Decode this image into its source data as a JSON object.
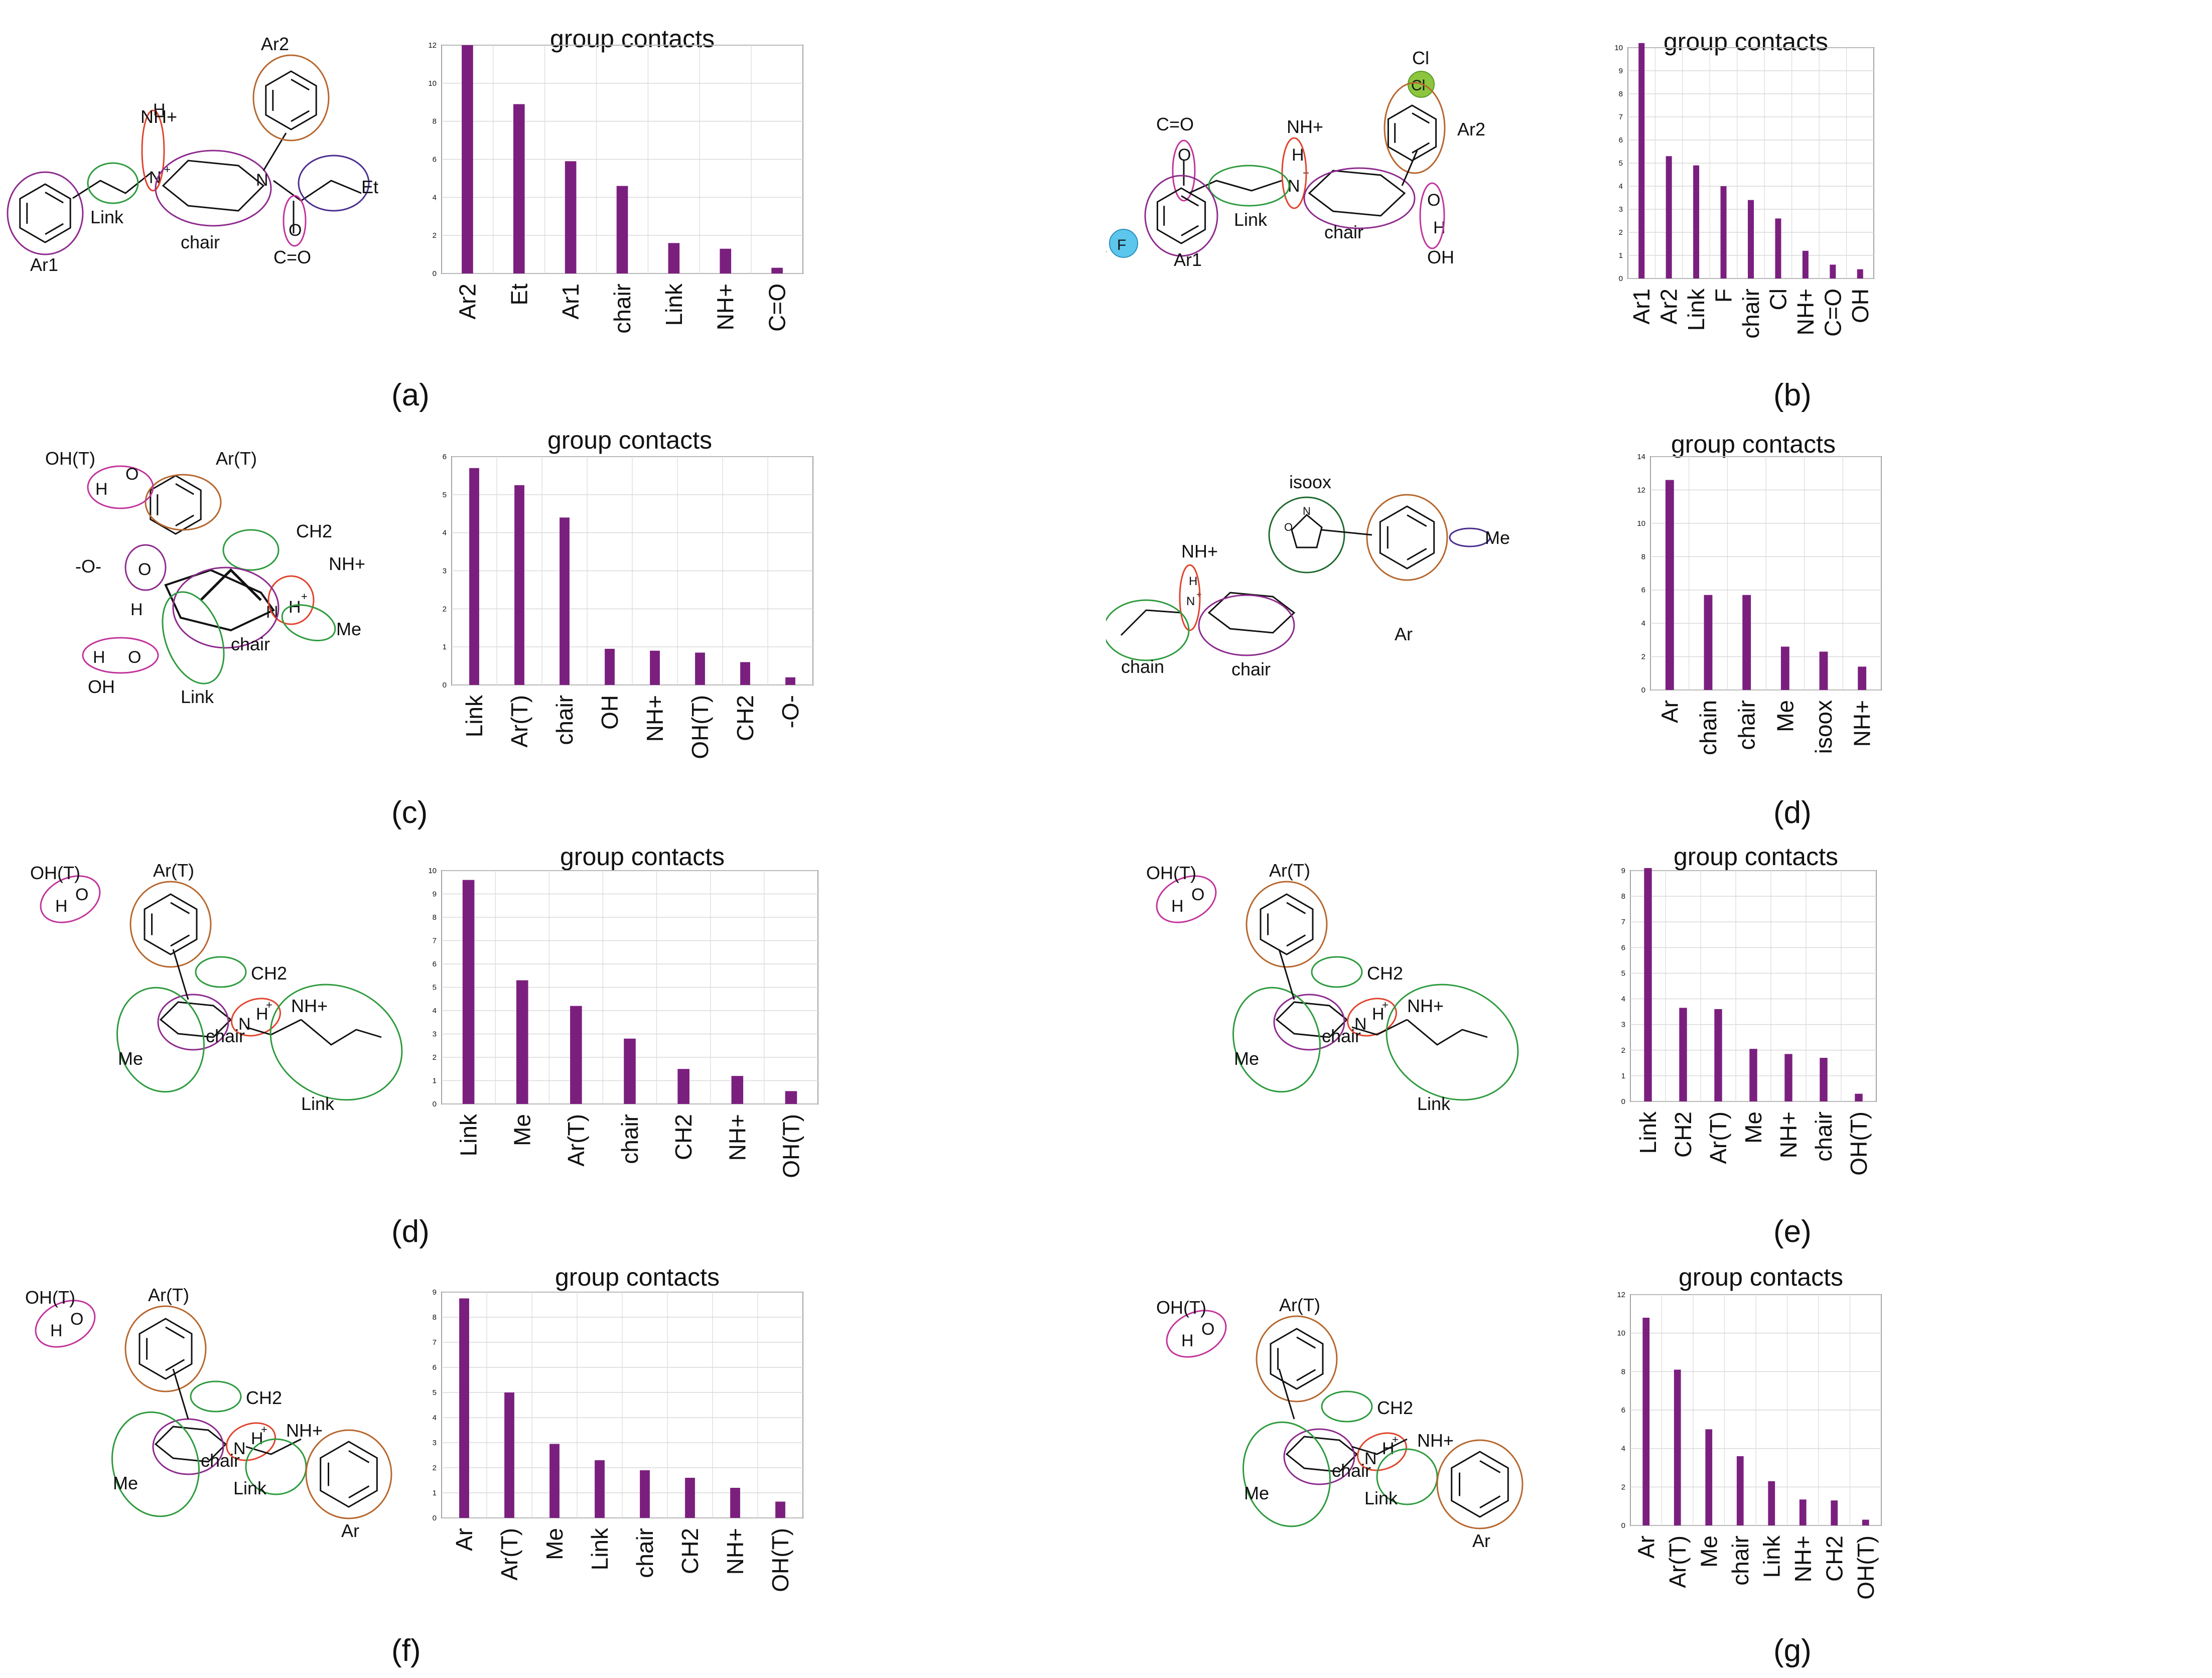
{
  "colors": {
    "bar": "#7B1F7F",
    "grid": "#d9d9d9",
    "axis": "#555555"
  },
  "chart_data": [
    {
      "id": "a",
      "panel_label": "(a)",
      "type": "bar",
      "title": "group contacts",
      "categories": [
        "Ar2",
        "Et",
        "Ar1",
        "chair",
        "Link",
        "NH+",
        "C=O"
      ],
      "values": [
        12.0,
        8.9,
        5.9,
        4.6,
        1.6,
        1.3,
        0.3
      ],
      "ylim": [
        0,
        12
      ],
      "yticks": [
        "0",
        "2",
        "4",
        "6",
        "8",
        "10",
        "12"
      ],
      "molecule": {
        "groups": [
          "Ar2",
          "NH+",
          "Link",
          "chair",
          "Et",
          "C=O",
          "Ar1"
        ],
        "atoms": [
          "H",
          "N",
          "+",
          "N",
          "O"
        ]
      }
    },
    {
      "id": "b",
      "panel_label": "(b)",
      "type": "bar",
      "title": "group contacts",
      "categories": [
        "Ar1",
        "Ar2",
        "Link",
        "F",
        "chair",
        "Cl",
        "NH+",
        "C=O",
        "OH"
      ],
      "values": [
        10.2,
        5.3,
        4.9,
        4.0,
        3.4,
        2.6,
        1.2,
        0.6,
        0.4
      ],
      "ylim": [
        0,
        10
      ],
      "yticks": [
        "0",
        "1",
        "2",
        "3",
        "4",
        "5",
        "6",
        "7",
        "8",
        "9",
        "10"
      ],
      "molecule": {
        "groups": [
          "Cl",
          "Ar2",
          "C=O",
          "NH+",
          "Link",
          "chair",
          "OH",
          "F",
          "Ar1"
        ],
        "atoms": [
          "Cl",
          "O",
          "H",
          "N",
          "+",
          "O",
          "H",
          "F"
        ]
      }
    },
    {
      "id": "c",
      "panel_label": "(c)",
      "type": "bar",
      "title": "group contacts",
      "categories": [
        "Link",
        "Ar(T)",
        "chair",
        "OH",
        "NH+",
        "OH(T)",
        "CH2",
        "-O-"
      ],
      "values": [
        5.7,
        5.25,
        4.4,
        0.95,
        0.9,
        0.85,
        0.6,
        0.2
      ],
      "ylim": [
        0,
        6
      ],
      "yticks": [
        "0",
        "1",
        "2",
        "3",
        "4",
        "5",
        "6"
      ],
      "molecule": {
        "groups": [
          "OH(T)",
          "Ar(T)",
          "CH2",
          "-O-",
          "NH+",
          "Me",
          "chair",
          "OH",
          "Link"
        ],
        "atoms": [
          "H",
          "O",
          "O",
          "H",
          "N",
          "H",
          "+",
          "H",
          "O"
        ]
      }
    },
    {
      "id": "d1",
      "panel_label": "(d)",
      "type": "bar",
      "title": "group contacts",
      "categories": [
        "Ar",
        "chain",
        "chair",
        "Me",
        "isoox",
        "NH+"
      ],
      "values": [
        12.6,
        5.7,
        5.7,
        2.6,
        2.3,
        1.4
      ],
      "ylim": [
        0,
        14
      ],
      "yticks": [
        "0",
        "2",
        "4",
        "6",
        "8",
        "10",
        "12",
        "14"
      ],
      "molecule": {
        "groups": [
          "isoox",
          "NH+",
          "Me",
          "chain",
          "chair",
          "Ar"
        ],
        "atoms": [
          "H",
          "N",
          "+",
          "O",
          "N"
        ]
      }
    },
    {
      "id": "d2",
      "panel_label": "(d)",
      "type": "bar",
      "title": "group contacts",
      "categories": [
        "Link",
        "Me",
        "Ar(T)",
        "chair",
        "CH2",
        "NH+",
        "OH(T)"
      ],
      "values": [
        9.6,
        5.3,
        4.2,
        2.8,
        1.5,
        1.2,
        0.55
      ],
      "ylim": [
        0,
        10
      ],
      "yticks": [
        "0",
        "1",
        "2",
        "3",
        "4",
        "5",
        "6",
        "7",
        "8",
        "9",
        "10"
      ],
      "molecule": {
        "groups": [
          "OH(T)",
          "Ar(T)",
          "CH2",
          "NH+",
          "Me",
          "chair",
          "Link"
        ],
        "atoms": [
          "H",
          "O",
          "N",
          "H",
          "+"
        ]
      }
    },
    {
      "id": "e",
      "panel_label": "(e)",
      "type": "bar",
      "title": "group contacts",
      "categories": [
        "Link",
        "CH2",
        "Ar(T)",
        "Me",
        "NH+",
        "chair",
        "OH(T)"
      ],
      "values": [
        9.1,
        3.65,
        3.6,
        2.05,
        1.85,
        1.7,
        0.3
      ],
      "ylim": [
        0,
        9
      ],
      "yticks": [
        "0",
        "1",
        "2",
        "3",
        "4",
        "5",
        "6",
        "7",
        "8",
        "9"
      ],
      "molecule": {
        "groups": [
          "OH(T)",
          "Ar(T)",
          "CH2",
          "NH+",
          "Me",
          "chair",
          "Link"
        ],
        "atoms": [
          "H",
          "O",
          "N",
          "H",
          "+"
        ]
      }
    },
    {
      "id": "f",
      "panel_label": "(f)",
      "type": "bar",
      "title": "group contacts",
      "categories": [
        "Ar",
        "Ar(T)",
        "Me",
        "Link",
        "chair",
        "CH2",
        "NH+",
        "OH(T)"
      ],
      "values": [
        8.75,
        5.0,
        2.95,
        2.3,
        1.9,
        1.6,
        1.2,
        0.65
      ],
      "ylim": [
        0,
        9
      ],
      "yticks": [
        "0",
        "1",
        "2",
        "3",
        "4",
        "5",
        "6",
        "7",
        "8",
        "9"
      ],
      "molecule": {
        "groups": [
          "OH(T)",
          "Ar(T)",
          "CH2",
          "NH+",
          "Me",
          "chair",
          "Link",
          "Ar"
        ],
        "atoms": [
          "H",
          "O",
          "N",
          "H",
          "+"
        ]
      }
    },
    {
      "id": "g",
      "panel_label": "(g)",
      "type": "bar",
      "title": "group contacts",
      "categories": [
        "Ar",
        "Ar(T)",
        "Me",
        "chair",
        "Link",
        "NH+",
        "CH2",
        "OH(T)"
      ],
      "values": [
        10.8,
        8.1,
        5.0,
        3.6,
        2.3,
        1.35,
        1.3,
        0.3
      ],
      "ylim": [
        0,
        12
      ],
      "yticks": [
        "0",
        "2",
        "4",
        "6",
        "8",
        "10",
        "12"
      ],
      "molecule": {
        "groups": [
          "OH(T)",
          "Ar(T)",
          "CH2",
          "NH+",
          "Me",
          "chair",
          "Link",
          "Ar"
        ],
        "atoms": [
          "H",
          "O",
          "N",
          "H",
          "+"
        ]
      }
    }
  ]
}
